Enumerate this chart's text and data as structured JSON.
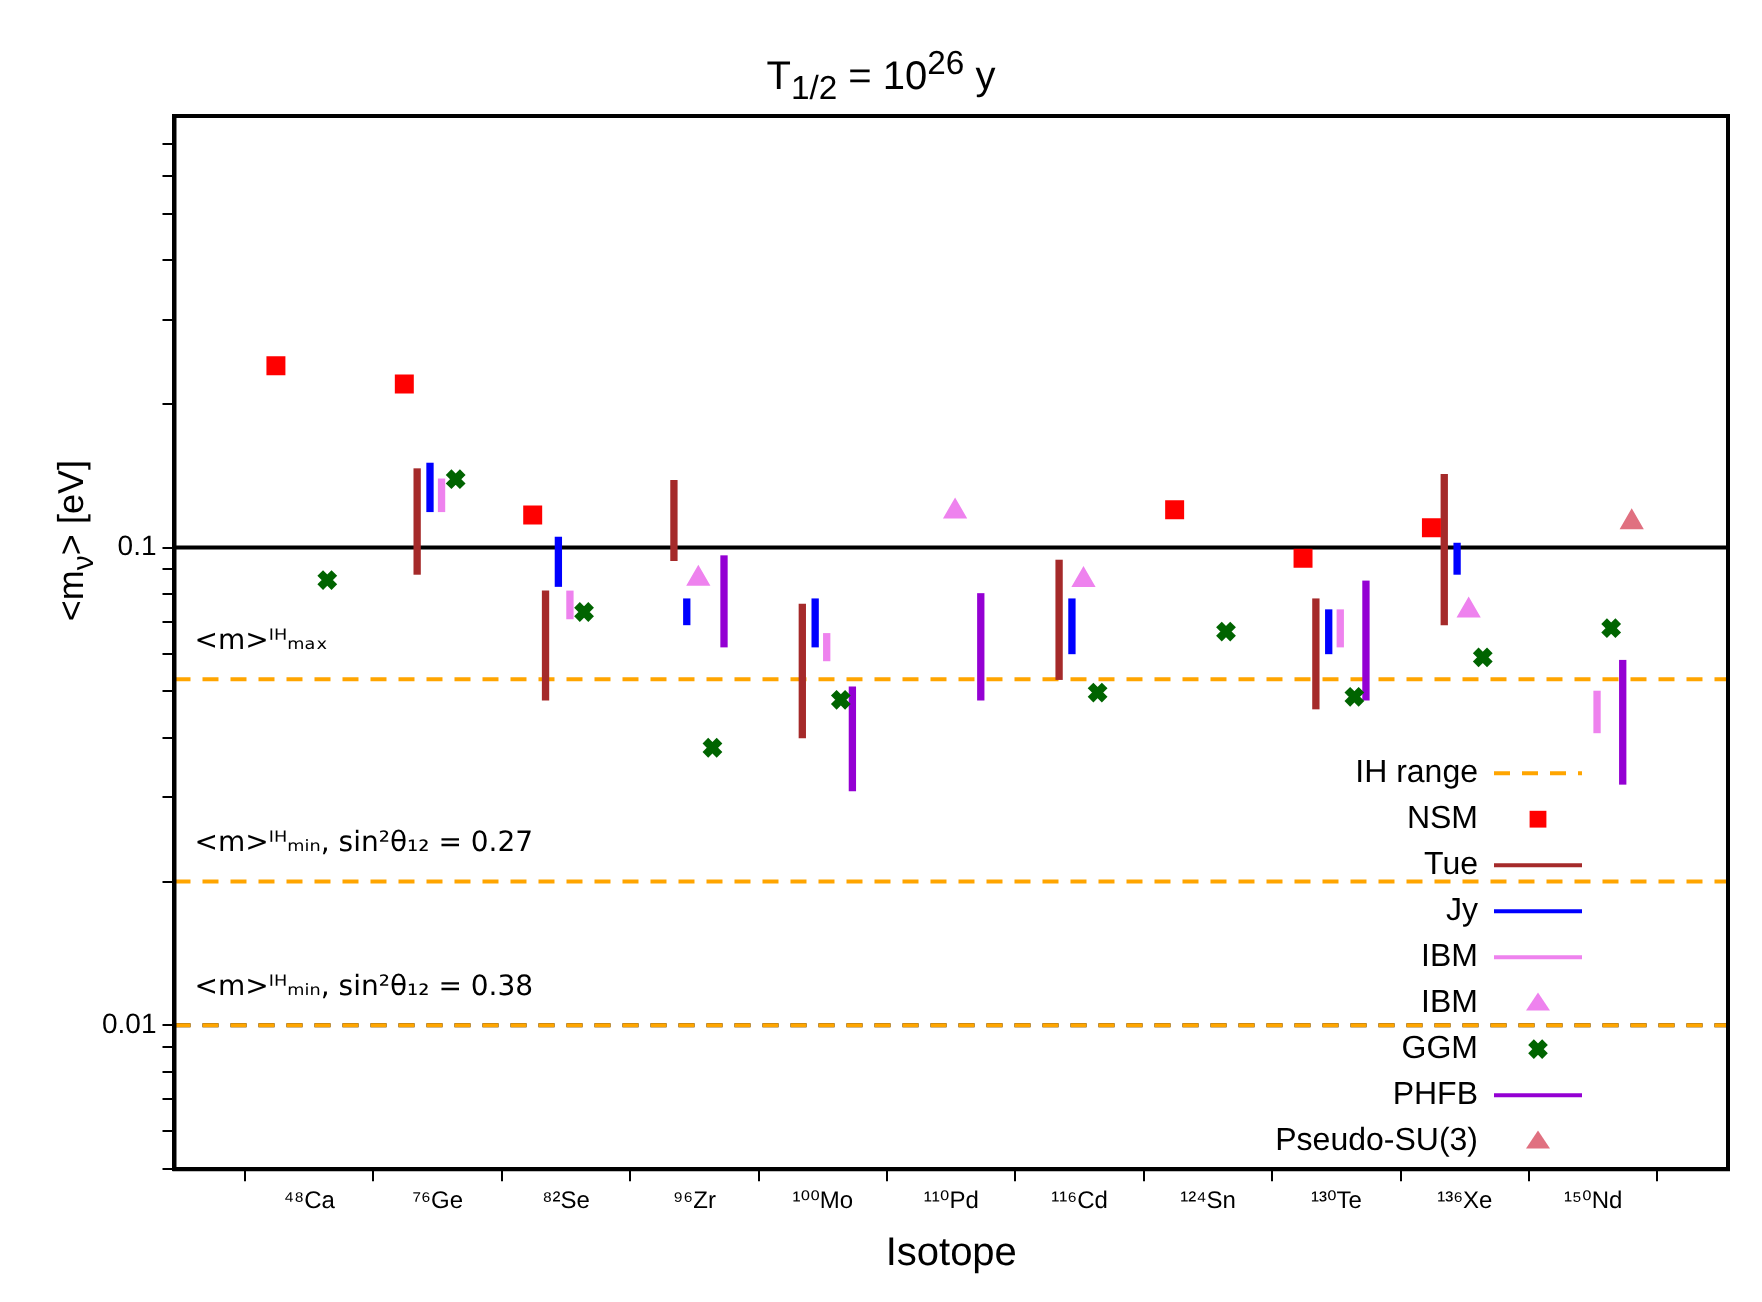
{
  "chart_data": {
    "type": "bar",
    "title": "T$_{1/2}$ = 10$^{26}$ y",
    "xlabel": "Isotope",
    "ylabel": "<m$_{ν}$> [eV]",
    "legend_title": "IH range",
    "categories": [
      "⁴⁸Ca",
      "⁷⁶Ge",
      "⁸²Se",
      "⁹⁶Zr",
      "¹⁰⁰Mo",
      "¹¹⁰Pd",
      "¹¹⁶Cd",
      "¹²⁴Sn",
      "¹³⁰Te",
      "¹³⁶Xe",
      "¹⁵⁰Nd"
    ],
    "series": [
      {
        "name": "NSM",
        "type": "scatter",
        "marker": "square",
        "color": "#ff0000",
        "values": [
          0.24,
          0.22,
          0.117,
          null,
          null,
          null,
          null,
          0.12,
          0.095,
          0.11,
          null
        ]
      },
      {
        "name": "Tue",
        "color": "#a52a2a",
        "base": [
          null,
          0.088,
          0.048,
          0.094,
          0.04,
          null,
          0.053,
          null,
          0.046,
          0.069,
          null
        ],
        "values": [
          null,
          0.058,
          0.033,
          0.044,
          0.036,
          null,
          0.041,
          null,
          0.032,
          0.073,
          null
        ]
      },
      {
        "name": "Jy",
        "color": "#0000ff",
        "base": [
          null,
          0.119,
          0.083,
          0.069,
          0.062,
          null,
          0.06,
          null,
          0.06,
          0.088,
          null
        ],
        "values": [
          null,
          0.031,
          0.022,
          0.009,
          0.016,
          null,
          0.018,
          null,
          0.014,
          0.014,
          null
        ]
      },
      {
        "name": "IBM",
        "color": "#ee82ee",
        "base": [
          null,
          0.119,
          0.071,
          null,
          0.058,
          null,
          null,
          null,
          0.062,
          null,
          0.041
        ],
        "values": [
          null,
          0.02,
          0.01,
          null,
          0.008,
          null,
          null,
          null,
          0.012,
          null,
          0.009
        ]
      },
      {
        "name": "IBM",
        "type": "scatter",
        "marker": "triangle",
        "color": "#ee82ee",
        "values": [
          null,
          null,
          null,
          0.086,
          null,
          0.119,
          0.0855,
          null,
          null,
          0.0738,
          null
        ]
      },
      {
        "name": "GGM",
        "type": "scatter",
        "marker": "cross",
        "color": "#006400",
        "values": [
          0.0855,
          0.139,
          0.0733,
          0.0381,
          0.048,
          null,
          0.0497,
          0.0667,
          0.0487,
          0.0589,
          0.0678
        ]
      },
      {
        "name": "PHFB",
        "color": "#9400d3",
        "base": [
          null,
          null,
          null,
          0.062,
          0.031,
          0.048,
          null,
          null,
          0.048,
          null,
          0.032
        ],
        "values": [
          null,
          null,
          null,
          0.034,
          0.02,
          0.032,
          null,
          null,
          0.037,
          null,
          0.026
        ]
      },
      {
        "name": "Pseudo-SU(3)",
        "type": "scatter",
        "marker": "triangle",
        "color": "#e07080",
        "values": [
          null,
          null,
          null,
          null,
          null,
          null,
          null,
          null,
          null,
          null,
          0.113
        ]
      }
    ],
    "log": true,
    "ylim": [
      0.005,
      0.8
    ],
    "yticks": [
      {
        "value": 0.005,
        "label": null
      },
      {
        "value": 0.006,
        "label": null
      },
      {
        "value": 0.007,
        "label": null
      },
      {
        "value": 0.008,
        "label": null
      },
      {
        "value": 0.009,
        "label": null
      },
      0.01,
      {
        "value": 0.02,
        "label": null
      },
      {
        "value": 0.03,
        "label": null
      },
      {
        "value": 0.04,
        "label": null
      },
      {
        "value": 0.05,
        "label": null
      },
      {
        "value": 0.06,
        "label": null
      },
      {
        "value": 0.07,
        "label": null
      },
      {
        "value": 0.08,
        "label": null
      },
      {
        "value": 0.09,
        "label": null
      },
      0.1,
      {
        "value": 0.2,
        "label": null
      },
      {
        "value": 0.3,
        "label": null
      },
      {
        "value": 0.4,
        "label": null
      },
      {
        "value": 0.5,
        "label": null
      },
      {
        "value": 0.6,
        "label": null
      },
      {
        "value": 0.7,
        "label": null
      }
    ],
    "ref_lines": [
      {
        "axis": "y",
        "value": 0.1,
        "color": "#000000",
        "line_style": "solid"
      },
      {
        "axis": "y",
        "value": 0.01,
        "color": "#000000",
        "line_style": "dashed"
      },
      {
        "axis": "y",
        "value": 0.053,
        "color": "#ffa500",
        "line_style": "dashed"
      },
      {
        "axis": "y",
        "value": 0.02,
        "color": "#ffa500",
        "line_style": "dashed"
      },
      {
        "axis": "y",
        "value": 0.01,
        "color": "#ffa500",
        "line_style": "dashed"
      }
    ],
    "annotations": [
      {
        "text": "<m>ᴵᴴₘₐₓ",
        "y": 0.053
      },
      {
        "text": "<m>ᴵᴴₘᵢₙ, sin²θ₁₂ = 0.27",
        "y": 0.02
      },
      {
        "text": "<m>ᴵᴴₘᵢₙ, sin²θ₁₂ = 0.38",
        "y": 0.01
      }
    ],
    "grid": false,
    "legend": "bottom right"
  }
}
